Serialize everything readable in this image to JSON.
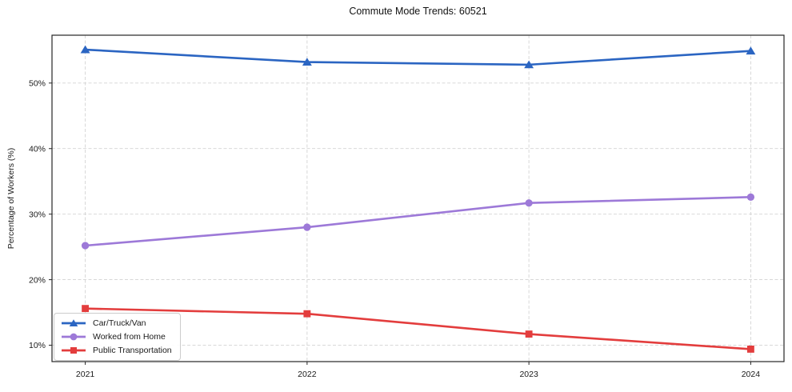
{
  "chart_data": {
    "type": "line",
    "title": "Commute Mode Trends: 60521",
    "ylabel": "Percentage of Workers (%)",
    "xlabel": "",
    "x": [
      2021,
      2022,
      2023,
      2024
    ],
    "x_tick_labels": [
      "2021",
      "2022",
      "2023",
      "2024"
    ],
    "y_ticks": [
      10,
      20,
      30,
      40,
      50
    ],
    "y_tick_labels": [
      "10%",
      "20%",
      "30%",
      "40%",
      "50%"
    ],
    "xlim": [
      2020.85,
      2024.15
    ],
    "ylim": [
      7.5,
      57.3
    ],
    "grid": true,
    "grid_style": "dashed",
    "legend_position": "lower-left",
    "series": [
      {
        "name": "Car/Truck/Van",
        "marker": "triangle",
        "color": "#2b65c2",
        "values": [
          55.1,
          53.2,
          52.8,
          54.9
        ]
      },
      {
        "name": "Worked from Home",
        "marker": "circle",
        "color": "#9d79d8",
        "values": [
          25.2,
          28.0,
          31.7,
          32.6
        ]
      },
      {
        "name": "Public Transportation",
        "marker": "square",
        "color": "#e33d3d",
        "values": [
          15.6,
          14.8,
          11.7,
          9.4
        ]
      }
    ]
  },
  "colors": {
    "background": "#ffffff",
    "grid": "#d3d3d3",
    "axis": "#262626",
    "text": "#1a1a1a"
  }
}
